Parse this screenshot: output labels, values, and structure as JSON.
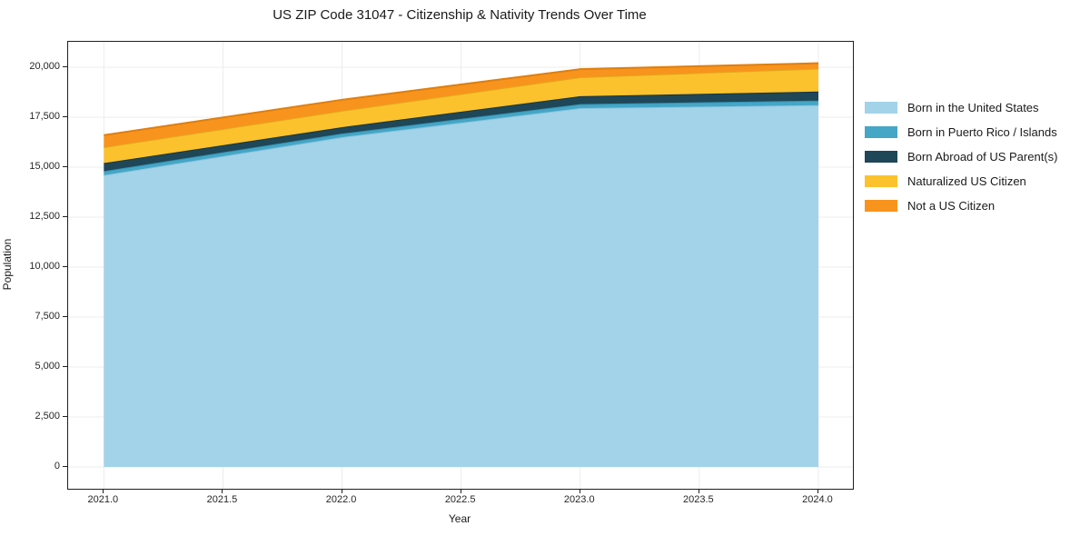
{
  "title": "US ZIP Code 31047 - Citizenship & Nativity Trends Over Time",
  "chart_data": {
    "type": "area",
    "stacked": true,
    "title": "US ZIP Code 31047 - Citizenship & Nativity Trends Over Time",
    "xlabel": "Year",
    "ylabel": "Population",
    "x": [
      2021,
      2022,
      2023,
      2024
    ],
    "series": [
      {
        "name": "Born in the United States",
        "color": "#A3D3E8",
        "edge": "#8CC4DE",
        "values": [
          14600,
          16500,
          17950,
          18100
        ]
      },
      {
        "name": "Born in Puerto Rico / Islands",
        "color": "#45A6C6",
        "edge": "#3194B6",
        "values": [
          200,
          180,
          200,
          230
        ]
      },
      {
        "name": "Born Abroad of US Parent(s)",
        "color": "#1F4757",
        "edge": "#173642",
        "values": [
          400,
          320,
          400,
          450
        ]
      },
      {
        "name": "Naturalized US Citizen",
        "color": "#FBC22D",
        "edge": "#E0A81C",
        "values": [
          800,
          820,
          950,
          1150
        ]
      },
      {
        "name": "Not a US Citizen",
        "color": "#F8941D",
        "edge": "#DE7F10",
        "values": [
          600,
          550,
          400,
          270
        ]
      }
    ],
    "totals": [
      16600,
      18370,
      19900,
      20200
    ],
    "xticks": {
      "values": [
        2021.0,
        2021.5,
        2022.0,
        2022.5,
        2023.0,
        2023.5,
        2024.0
      ],
      "labels": [
        "2021.0",
        "2021.5",
        "2022.0",
        "2022.5",
        "2023.0",
        "2023.5",
        "2024.0"
      ]
    },
    "yticks": {
      "values": [
        0,
        2500,
        5000,
        7500,
        10000,
        12500,
        15000,
        17500,
        20000
      ],
      "labels": [
        "0",
        "2,500",
        "5,000",
        "7,500",
        "10,000",
        "12,500",
        "15,000",
        "17,500",
        "20,000"
      ]
    },
    "xlim": [
      2020.85,
      2024.145
    ],
    "ylim": [
      -1090,
      21270
    ],
    "grid": true,
    "grid_color": "#ececec",
    "legend_position": "right-outside",
    "legend_entries": [
      "Born in the United States",
      "Born in Puerto Rico / Islands",
      "Born Abroad of US Parent(s)",
      "Naturalized US Citizen",
      "Not a US Citizen"
    ]
  }
}
